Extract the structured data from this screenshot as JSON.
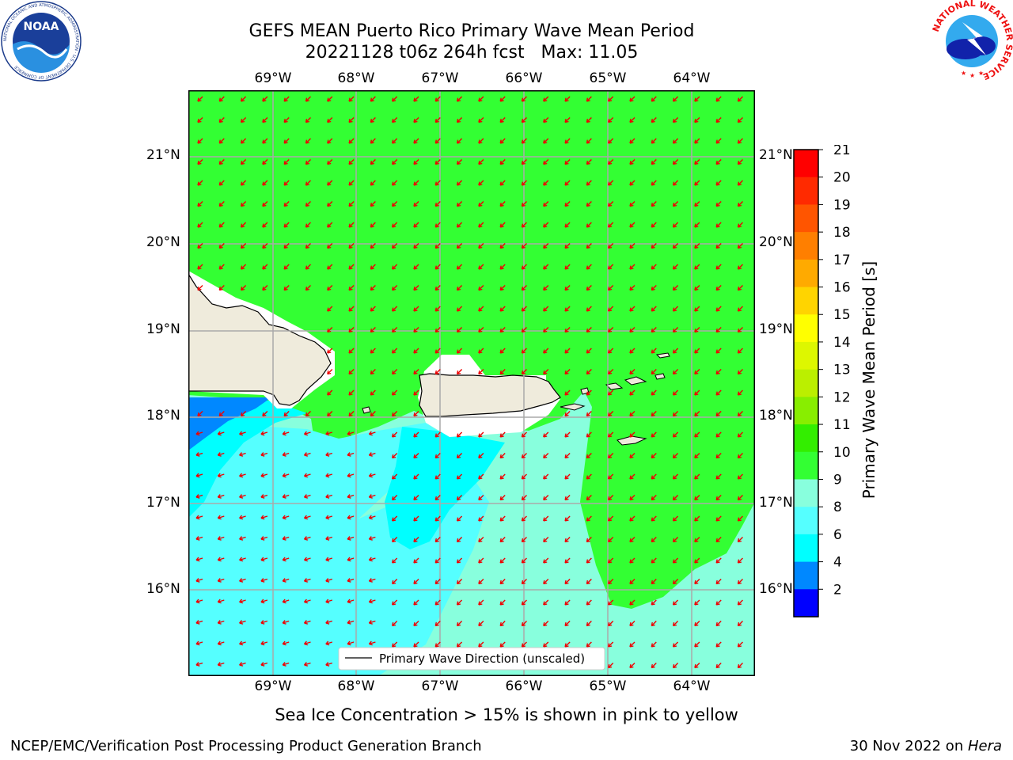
{
  "title": {
    "line1": "GEFS MEAN Puerto Rico Primary Wave Mean Period",
    "line2": "20221128 t06z 264h fcst   Max: 11.05"
  },
  "map": {
    "lon_labels": [
      "69°W",
      "68°W",
      "67°W",
      "66°W",
      "65°W",
      "64°W"
    ],
    "lat_labels": [
      "21°N",
      "20°N",
      "19°N",
      "18°N",
      "17°N",
      "16°N"
    ],
    "legend_label": "Primary Wave Direction (unscaled)"
  },
  "colorbar": {
    "title": "Primary Wave Mean Period [s]",
    "ticks": [
      "21",
      "20",
      "19",
      "18",
      "17",
      "16",
      "15",
      "14",
      "13",
      "12",
      "11",
      "10",
      "9",
      "8",
      "6",
      "4",
      "2"
    ],
    "colors": [
      "#ff0000",
      "#ff2a00",
      "#ff5500",
      "#ff7f00",
      "#ffaa00",
      "#ffd400",
      "#ffff00",
      "#ddf700",
      "#bbef00",
      "#88ee00",
      "#33ee00",
      "#33ff33",
      "#88ffdd",
      "#55ffff",
      "#00ffff",
      "#0088ff",
      "#0000ff"
    ]
  },
  "colors": {
    "land": "#efebdc",
    "ocean_green": "#33ff33",
    "ocean_aqua": "#88ffdd",
    "ocean_cyan_light": "#55ffff",
    "ocean_cyan": "#00ffff",
    "ocean_blue": "#0088ff",
    "arrow": "#ee0000"
  },
  "notes": {
    "ice": "Sea Ice Concentration > 15% is shown in pink to yellow"
  },
  "footer": {
    "left": "NCEP/EMC/Verification Post Processing Product Generation Branch",
    "right_date": "30 Nov 2022 on ",
    "right_host": "Hera"
  },
  "logos": {
    "noaa": "NOAA",
    "noaa_ring": "NATIONAL OCEANIC AND ATMOSPHERIC ADMINISTRATION · U.S. DEPARTMENT OF COMMERCE",
    "nws_ring": "NATIONAL WEATHER SERVICE"
  }
}
